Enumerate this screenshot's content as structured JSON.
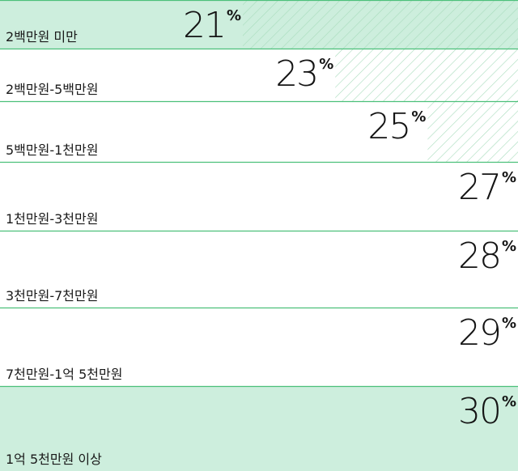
{
  "chart_data": {
    "type": "bar",
    "categories": [
      "2백만원 미만",
      "2백만원-5백만원",
      "5백만원-1천만원",
      "1천만원-3천만원",
      "3천만원-7천만원",
      "7천만원-1억 5천만원",
      "1억 5천만원 이상"
    ],
    "values": [
      21,
      23,
      25,
      27,
      28,
      29,
      30
    ],
    "value_labels": [
      "21",
      "23",
      "25",
      "27",
      "28",
      "29",
      "30"
    ],
    "value_suffix": "%",
    "highlight": [
      true,
      false,
      false,
      false,
      false,
      false,
      true
    ],
    "title": "",
    "xlabel": "",
    "ylabel": "",
    "colors": {
      "highlight_fill": "#cdeedd",
      "hatch": "#a8dcbc",
      "divider": "#4cc07a",
      "text": "#141414"
    }
  }
}
